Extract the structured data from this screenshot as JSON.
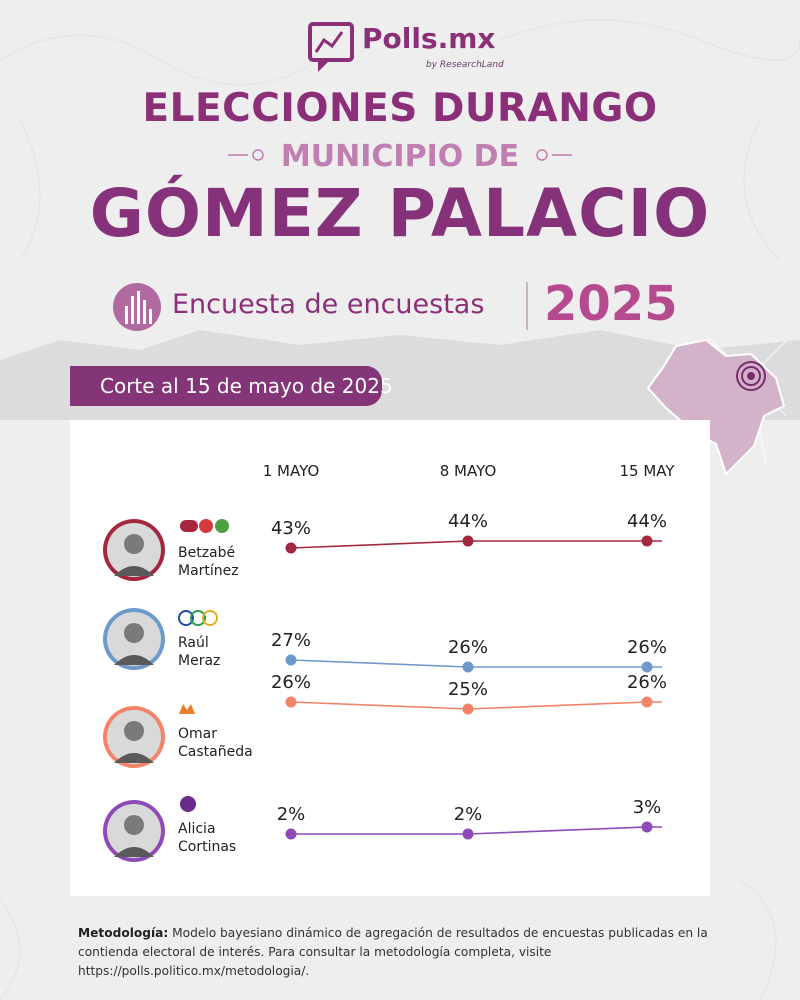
{
  "brand": {
    "name": "Polls.mx",
    "tagline": "by ResearchLand"
  },
  "title": {
    "line1": "ELECCIONES DURANGO",
    "line2": "MUNICIPIO DE",
    "line3": "GÓMEZ PALACIO",
    "subtitle": "Encuesta de encuestas",
    "year": "2025"
  },
  "cutoff": "Corte al 15 de mayo de 2025",
  "colors": {
    "brand_purple": "#8a2f78",
    "betzabe": "#a3283f",
    "raul": "#6e9acb",
    "omar": "#f2846a",
    "alicia": "#8f4bb5"
  },
  "candidates": [
    {
      "first": "Betzabé",
      "last": "Martínez",
      "parties": [
        "morena",
        "PT",
        "PVEM"
      ]
    },
    {
      "first": "Raúl",
      "last": "Meraz",
      "parties": [
        "PAN",
        "PRI",
        "PRD"
      ]
    },
    {
      "first": "Omar",
      "last": "Castañeda",
      "parties": [
        "MC"
      ]
    },
    {
      "first": "Alicia",
      "last": "Cortinas",
      "parties": [
        "PES"
      ]
    }
  ],
  "chart_data": {
    "type": "line",
    "categories": [
      "1 MAYO",
      "8  MAYO",
      "15 MAY"
    ],
    "series": [
      {
        "name": "Betzabé Martínez",
        "values": [
          43,
          44,
          44
        ],
        "labels": [
          "43%",
          "44%",
          "44%"
        ],
        "color": "#a3283f"
      },
      {
        "name": "Raúl Meraz",
        "values": [
          27,
          26,
          26
        ],
        "labels": [
          "27%",
          "26%",
          "26%"
        ],
        "color": "#6e9acb"
      },
      {
        "name": "Omar Castañeda",
        "values": [
          26,
          25,
          26
        ],
        "labels": [
          "26%",
          "25%",
          "26%"
        ],
        "color": "#f2846a"
      },
      {
        "name": "Alicia Cortinas",
        "values": [
          2,
          2,
          3
        ],
        "labels": [
          "2%",
          "2%",
          "3%"
        ],
        "color": "#8f4bb5"
      }
    ]
  },
  "methodology": {
    "label": "Metodología:",
    "text": " Modelo bayesiano dinámico de agregación de resultados de encuestas publicadas en la contienda electoral de interés. Para consultar la metodología completa, visite https://polls.politico.mx/metodologia/."
  }
}
